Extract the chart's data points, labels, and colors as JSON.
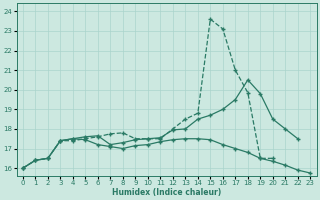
{
  "xlabel": "Humidex (Indice chaleur)",
  "bg_color": "#cce8e0",
  "line_color": "#2a7a65",
  "grid_color": "#aad4cc",
  "xlim": [
    -0.5,
    23.5
  ],
  "ylim": [
    15.6,
    24.4
  ],
  "xticks": [
    0,
    1,
    2,
    3,
    4,
    5,
    6,
    7,
    8,
    9,
    10,
    11,
    12,
    13,
    14,
    15,
    16,
    17,
    18,
    19,
    20,
    21,
    22,
    23
  ],
  "yticks": [
    16,
    17,
    18,
    19,
    20,
    21,
    22,
    23,
    24
  ],
  "line1_x": [
    0,
    1,
    2,
    3,
    4,
    5,
    6,
    7,
    8,
    9,
    10,
    11,
    12,
    13,
    14,
    15,
    16,
    17,
    18,
    19,
    20
  ],
  "line1_y": [
    16.0,
    16.4,
    16.5,
    17.4,
    17.4,
    17.5,
    17.6,
    17.75,
    17.8,
    17.5,
    17.5,
    17.5,
    18.0,
    18.5,
    18.8,
    23.6,
    23.1,
    21.0,
    19.85,
    16.5,
    16.5
  ],
  "line1_style": "--",
  "line2_x": [
    0,
    1,
    2,
    3,
    4,
    5,
    6,
    7,
    8,
    9,
    10,
    11,
    12,
    13,
    14,
    15,
    16,
    17,
    18,
    19,
    20,
    21,
    22
  ],
  "line2_y": [
    16.0,
    16.4,
    16.5,
    17.4,
    17.5,
    17.6,
    17.65,
    17.2,
    17.3,
    17.45,
    17.5,
    17.55,
    17.95,
    18.0,
    18.5,
    18.7,
    19.0,
    19.5,
    20.5,
    19.8,
    18.5,
    18.0,
    17.5
  ],
  "line2_style": "-",
  "line3_x": [
    0,
    1,
    2,
    3,
    4,
    5,
    6,
    7,
    8,
    9,
    10,
    11,
    12,
    13,
    14,
    15,
    16,
    17,
    18,
    19,
    20,
    21,
    22,
    23
  ],
  "line3_y": [
    16.0,
    16.4,
    16.5,
    17.4,
    17.5,
    17.45,
    17.2,
    17.1,
    17.0,
    17.15,
    17.2,
    17.35,
    17.45,
    17.5,
    17.5,
    17.45,
    17.2,
    17.0,
    16.8,
    16.5,
    16.35,
    16.15,
    15.9,
    15.75
  ],
  "line3_style": "-"
}
